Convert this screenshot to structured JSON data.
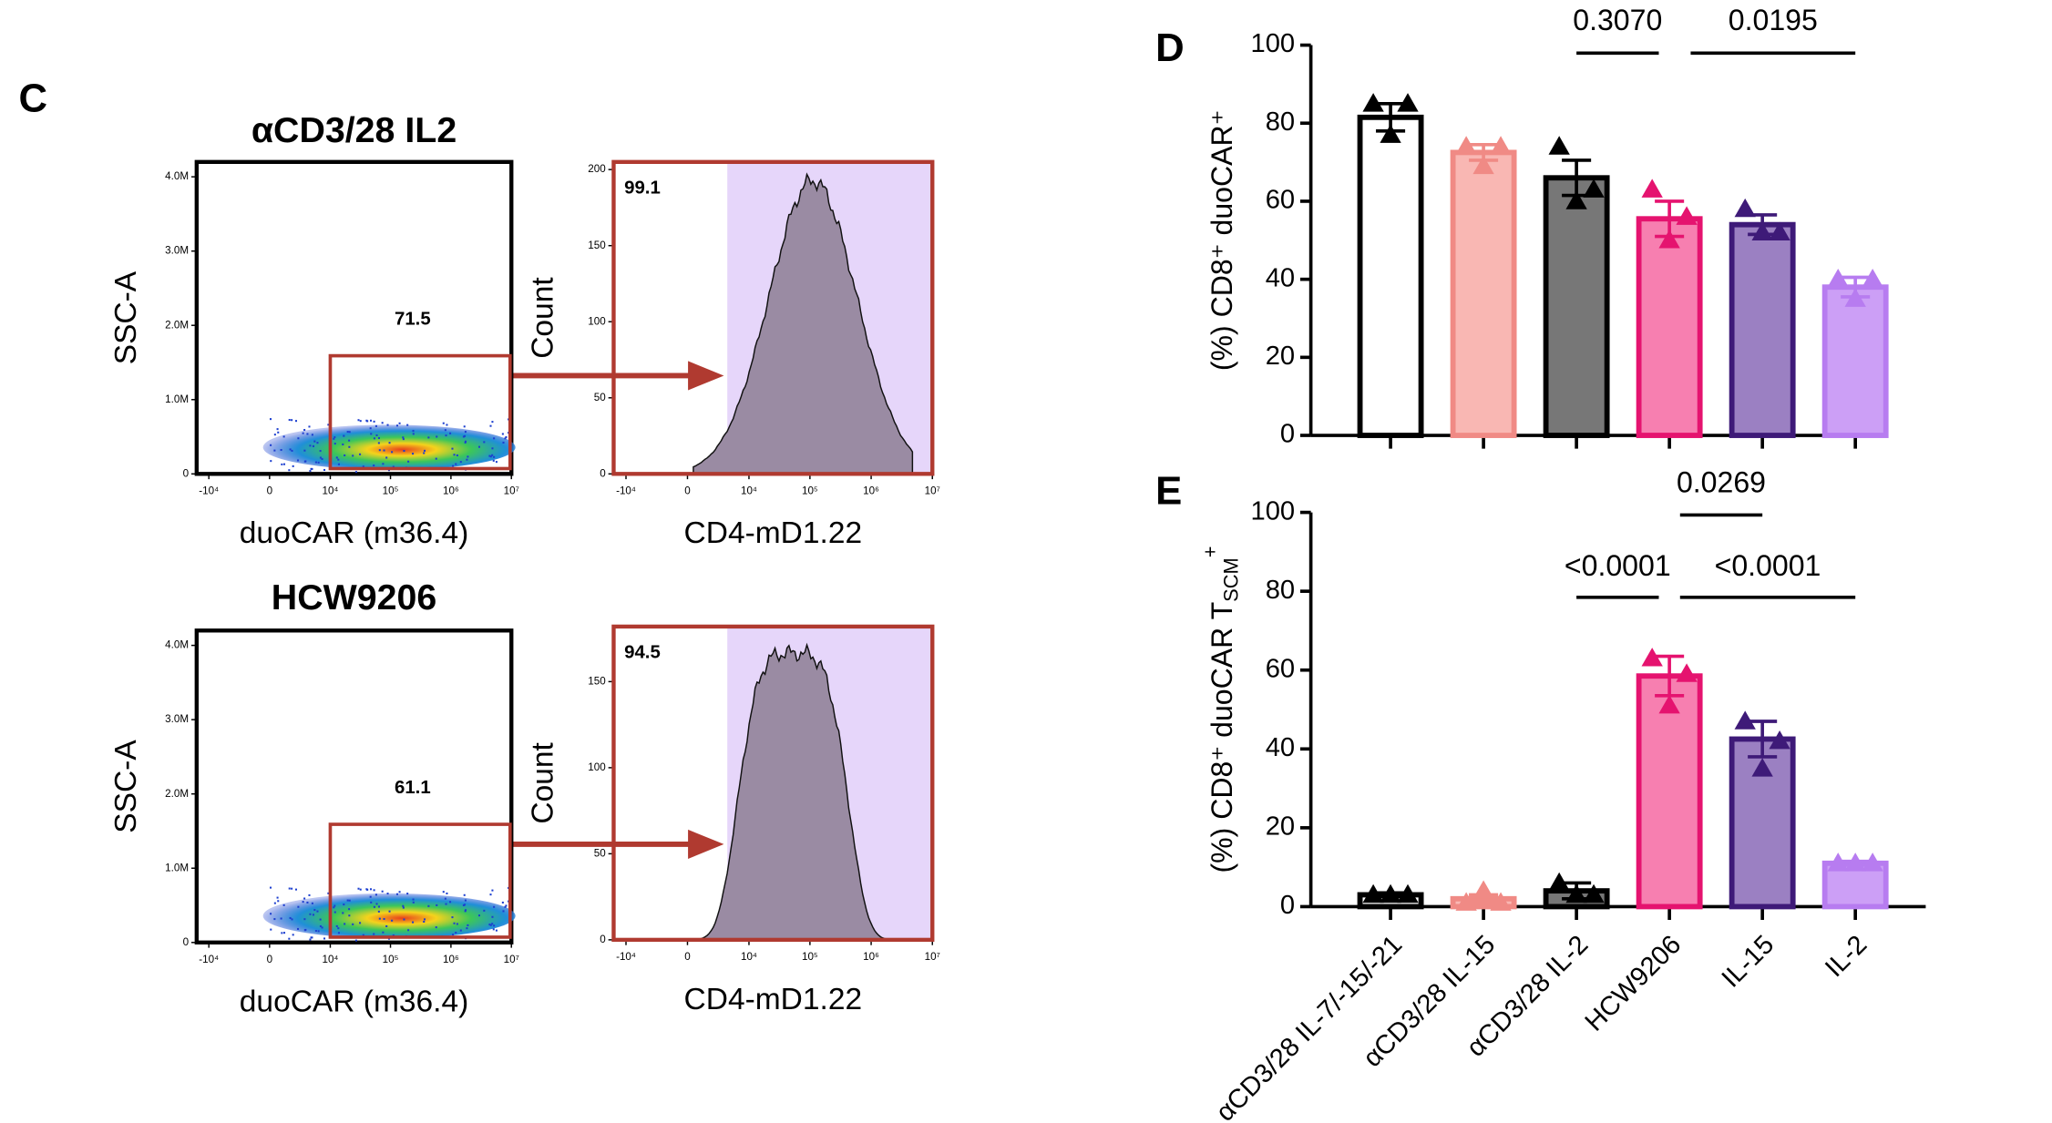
{
  "panel_labels": {
    "c": "C",
    "d": "D",
    "e": "E"
  },
  "chart_data": [
    {
      "type": "flow-scatter",
      "title": "αCD3/28 IL2",
      "x_label": "duoCAR (m36.4)",
      "y_label": "SSC-A",
      "gate_label": "71.5",
      "xscale": "logicle",
      "xlim": [
        -16000,
        10000000
      ],
      "xticks": [
        {
          "value": -10000,
          "label": "-10⁴"
        },
        0,
        {
          "value": 10000,
          "label": "10⁴"
        },
        {
          "value": 100000,
          "label": "10⁵"
        },
        {
          "value": 1000000,
          "label": "10⁶"
        },
        {
          "value": 10000000,
          "label": "10⁷"
        }
      ],
      "ylim": [
        0,
        4200000
      ],
      "yticks": [
        0,
        {
          "value": 1000000,
          "label": "1.0M"
        },
        {
          "value": 2000000,
          "label": "2.0M"
        },
        {
          "value": 3000000,
          "label": "3.0M"
        },
        {
          "value": 4000000,
          "label": "4.0M"
        }
      ]
    },
    {
      "type": "flow-histogram",
      "x_label": "CD4-mD1.22",
      "y_label": "Count",
      "gate_label": "99.1",
      "xscale": "logicle",
      "xlim": [
        -16000,
        10000000
      ],
      "xticks": [
        {
          "value": -10000,
          "label": "-10⁴"
        },
        0,
        {
          "value": 10000,
          "label": "10⁴"
        },
        {
          "value": 100000,
          "label": "10⁵"
        },
        {
          "value": 1000000,
          "label": "10⁶"
        },
        {
          "value": 10000000,
          "label": "10⁷"
        }
      ],
      "ylim": [
        0,
        205
      ],
      "yticks": [
        0,
        50,
        100,
        150,
        200
      ]
    },
    {
      "type": "flow-scatter",
      "title": "HCW9206",
      "x_label": "duoCAR (m36.4)",
      "y_label": "SSC-A",
      "gate_label": "61.1",
      "xscale": "logicle",
      "xlim": [
        -16000,
        10000000
      ],
      "xticks": [
        {
          "value": -10000,
          "label": "-10⁴"
        },
        0,
        {
          "value": 10000,
          "label": "10⁴"
        },
        {
          "value": 100000,
          "label": "10⁵"
        },
        {
          "value": 1000000,
          "label": "10⁶"
        },
        {
          "value": 10000000,
          "label": "10⁷"
        }
      ],
      "ylim": [
        0,
        4200000
      ],
      "yticks": [
        0,
        {
          "value": 1000000,
          "label": "1.0M"
        },
        {
          "value": 2000000,
          "label": "2.0M"
        },
        {
          "value": 3000000,
          "label": "3.0M"
        },
        {
          "value": 4000000,
          "label": "4.0M"
        }
      ]
    },
    {
      "type": "flow-histogram",
      "x_label": "CD4-mD1.22",
      "y_label": "Count",
      "gate_label": "94.5",
      "xscale": "logicle",
      "xlim": [
        -16000,
        10000000
      ],
      "xticks": [
        {
          "value": -10000,
          "label": "-10⁴"
        },
        0,
        {
          "value": 10000,
          "label": "10⁴"
        },
        {
          "value": 100000,
          "label": "10⁵"
        },
        {
          "value": 1000000,
          "label": "10⁶"
        },
        {
          "value": 10000000,
          "label": "10⁷"
        }
      ],
      "ylim": [
        0,
        182
      ],
      "yticks": [
        0,
        50,
        100,
        150
      ]
    },
    {
      "type": "bar",
      "y_label": "(%) CD8⁺ duoCAR⁺",
      "ylim": [
        0,
        100
      ],
      "yticks": [
        0,
        20,
        40,
        60,
        80,
        100
      ],
      "values": [
        81.5,
        72.5,
        66,
        55.5,
        54,
        38
      ],
      "errors": [
        3.5,
        2,
        4.5,
        4.5,
        2.5,
        2.5
      ],
      "points": [
        [
          85,
          85,
          77
        ],
        [
          74,
          74,
          69
        ],
        [
          74,
          63,
          60
        ],
        [
          63,
          56,
          50
        ],
        [
          58,
          52,
          52
        ],
        [
          40,
          40,
          35
        ]
      ],
      "colors": [
        "#ffffff",
        "#f9b7b3",
        "#777777",
        "#f77fb0",
        "#9b80c2",
        "#cc9ff6"
      ],
      "edge_colors": [
        "#000000",
        "#f08a85",
        "#000000",
        "#e5136f",
        "#3e1a78",
        "#b77cf0"
      ],
      "annotations": [
        "0.3070",
        "0.0195"
      ]
    },
    {
      "type": "bar",
      "y_label": "(%) CD8⁺ duoCAR T",
      "y_label_subscript": "SCM",
      "y_label_superscript": "+",
      "ylim": [
        0,
        100
      ],
      "yticks": [
        0,
        20,
        40,
        60,
        80,
        100
      ],
      "categories": [
        "αCD3/28 IL-7/-15/-21",
        "αCD3/28 IL-15",
        "αCD3/28 IL-2",
        "HCW9206",
        "IL-15",
        "IL-2"
      ],
      "values": [
        3,
        2,
        4,
        58.5,
        42.5,
        11
      ],
      "errors": [
        0.5,
        1,
        2,
        5,
        4.5,
        0.5
      ],
      "points": [
        [
          3,
          3,
          3
        ],
        [
          1,
          1,
          4
        ],
        [
          6,
          3,
          3
        ],
        [
          63,
          59,
          51
        ],
        [
          47,
          42,
          35
        ],
        [
          11,
          11,
          11
        ]
      ],
      "colors": [
        "#ffffff",
        "#f9b7b3",
        "#777777",
        "#f77fb0",
        "#9b80c2",
        "#cc9ff6"
      ],
      "edge_colors": [
        "#000000",
        "#f08a85",
        "#000000",
        "#e5136f",
        "#3e1a78",
        "#b77cf0"
      ],
      "annotations": [
        "0.0269",
        "<0.0001",
        "<0.0001"
      ]
    }
  ]
}
